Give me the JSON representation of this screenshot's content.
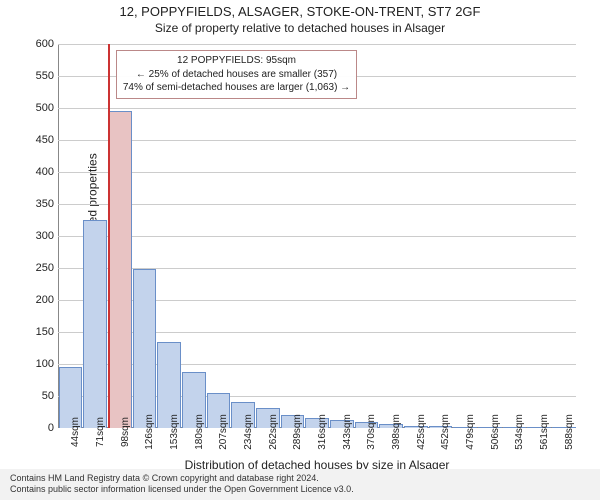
{
  "title": {
    "main": "12, POPPYFIELDS, ALSAGER, STOKE-ON-TRENT, ST7 2GF",
    "sub": "Size of property relative to detached houses in Alsager"
  },
  "chart": {
    "type": "histogram",
    "ylabel": "Number of detached properties",
    "xlabel": "Distribution of detached houses by size in Alsager",
    "ylim": [
      0,
      600
    ],
    "ytick_step": 50,
    "bar_fill": "#c3d3ec",
    "bar_stroke": "#6a8fc8",
    "grid_color": "#cccccc",
    "background": "#ffffff",
    "marker_color": "#cc3333",
    "marker_bar_fill": "#e8c3c3",
    "marker_x_index": 2,
    "xticks": [
      "44sqm",
      "71sqm",
      "98sqm",
      "126sqm",
      "153sqm",
      "180sqm",
      "207sqm",
      "234sqm",
      "262sqm",
      "289sqm",
      "316sqm",
      "343sqm",
      "370sqm",
      "398sqm",
      "425sqm",
      "452sqm",
      "479sqm",
      "506sqm",
      "534sqm",
      "561sqm",
      "588sqm"
    ],
    "values": [
      95,
      325,
      495,
      248,
      135,
      88,
      55,
      40,
      32,
      20,
      15,
      12,
      10,
      6,
      3,
      3,
      2,
      2,
      2,
      1,
      1
    ],
    "annotation": {
      "line1": "12 POPPYFIELDS: 95sqm",
      "line2": "← 25% of detached houses are smaller (357)",
      "line3": "74% of semi-detached houses are larger (1,063) →",
      "border_color": "#bb8888"
    }
  },
  "footer": {
    "line1": "Contains HM Land Registry data © Crown copyright and database right 2024.",
    "line2": "Contains public sector information licensed under the Open Government Licence v3.0."
  }
}
